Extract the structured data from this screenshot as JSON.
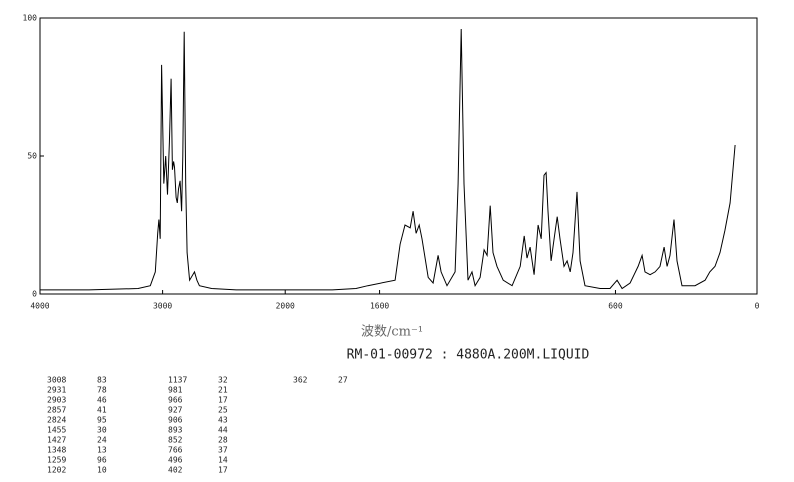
{
  "chart_data": {
    "type": "line",
    "x_label": "波数/cm⁻¹",
    "caption": "RM-01-00972 : 4880A.200M.LIQUID",
    "color": "#000000",
    "xlim": [
      4000,
      0
    ],
    "xticks": [
      4000,
      3000,
      2000,
      1600,
      600,
      0
    ],
    "ylim": [
      0,
      100
    ],
    "yticks": [
      0,
      50,
      100
    ],
    "x": [
      4000,
      3600,
      3200,
      3100,
      3060,
      3040,
      3030,
      3020,
      3008,
      2990,
      2975,
      2960,
      2945,
      2931,
      2920,
      2910,
      2903,
      2890,
      2880,
      2870,
      2857,
      2845,
      2835,
      2824,
      2812,
      2800,
      2780,
      2740,
      2720,
      2700,
      2600,
      2400,
      2200,
      2000,
      1800,
      1700,
      1650,
      1534,
      1513,
      1492,
      1470,
      1458,
      1445,
      1432,
      1420,
      1394,
      1373,
      1352,
      1339,
      1314,
      1280,
      1267,
      1254,
      1242,
      1225,
      1208,
      1195,
      1174,
      1157,
      1144,
      1131,
      1119,
      1102,
      1076,
      1038,
      1004,
      987,
      975,
      962,
      945,
      928,
      915,
      903,
      894,
      886,
      873,
      860,
      847,
      835,
      818,
      805,
      792,
      780,
      763,
      750,
      729,
      665,
      623,
      593,
      572,
      538,
      504,
      487,
      475,
      453,
      432,
      411,
      394,
      381,
      369,
      352,
      339,
      318,
      263,
      220,
      200,
      178,
      157,
      136,
      114,
      93
    ],
    "values": [
      1.5,
      1.5,
      2,
      3,
      8,
      22,
      27,
      20,
      83,
      40,
      50,
      36,
      55,
      78,
      45,
      48,
      46,
      35,
      33,
      38,
      41,
      30,
      50,
      95,
      40,
      15,
      5,
      8,
      5,
      3,
      2,
      1.5,
      1.5,
      1.5,
      1.5,
      2,
      3,
      5,
      18,
      25,
      24,
      30,
      22,
      25,
      20,
      6,
      4,
      14,
      8,
      3,
      8,
      40,
      96,
      40,
      5,
      8,
      3,
      6,
      16,
      14,
      32,
      15,
      10,
      5,
      3,
      10,
      21,
      13,
      17,
      7,
      25,
      20,
      43,
      44,
      30,
      12,
      20,
      28,
      20,
      10,
      12,
      8,
      15,
      37,
      12,
      3,
      2,
      2,
      5,
      2,
      4,
      10,
      14,
      8,
      7,
      8,
      10,
      17,
      10,
      14,
      27,
      12,
      3,
      3,
      5,
      8,
      10,
      15,
      23,
      33,
      54
    ]
  },
  "peak_table": [
    [
      3008,
      83
    ],
    [
      2931,
      78
    ],
    [
      2903,
      46
    ],
    [
      2857,
      41
    ],
    [
      2824,
      95
    ],
    [
      1455,
      30
    ],
    [
      1427,
      24
    ],
    [
      1348,
      13
    ],
    [
      1259,
      96
    ],
    [
      1202,
      10
    ],
    [
      1137,
      32
    ],
    [
      981,
      21
    ],
    [
      966,
      17
    ],
    [
      927,
      25
    ],
    [
      906,
      43
    ],
    [
      893,
      44
    ],
    [
      852,
      28
    ],
    [
      766,
      37
    ],
    [
      496,
      14
    ],
    [
      402,
      17
    ],
    [
      362,
      27
    ]
  ]
}
